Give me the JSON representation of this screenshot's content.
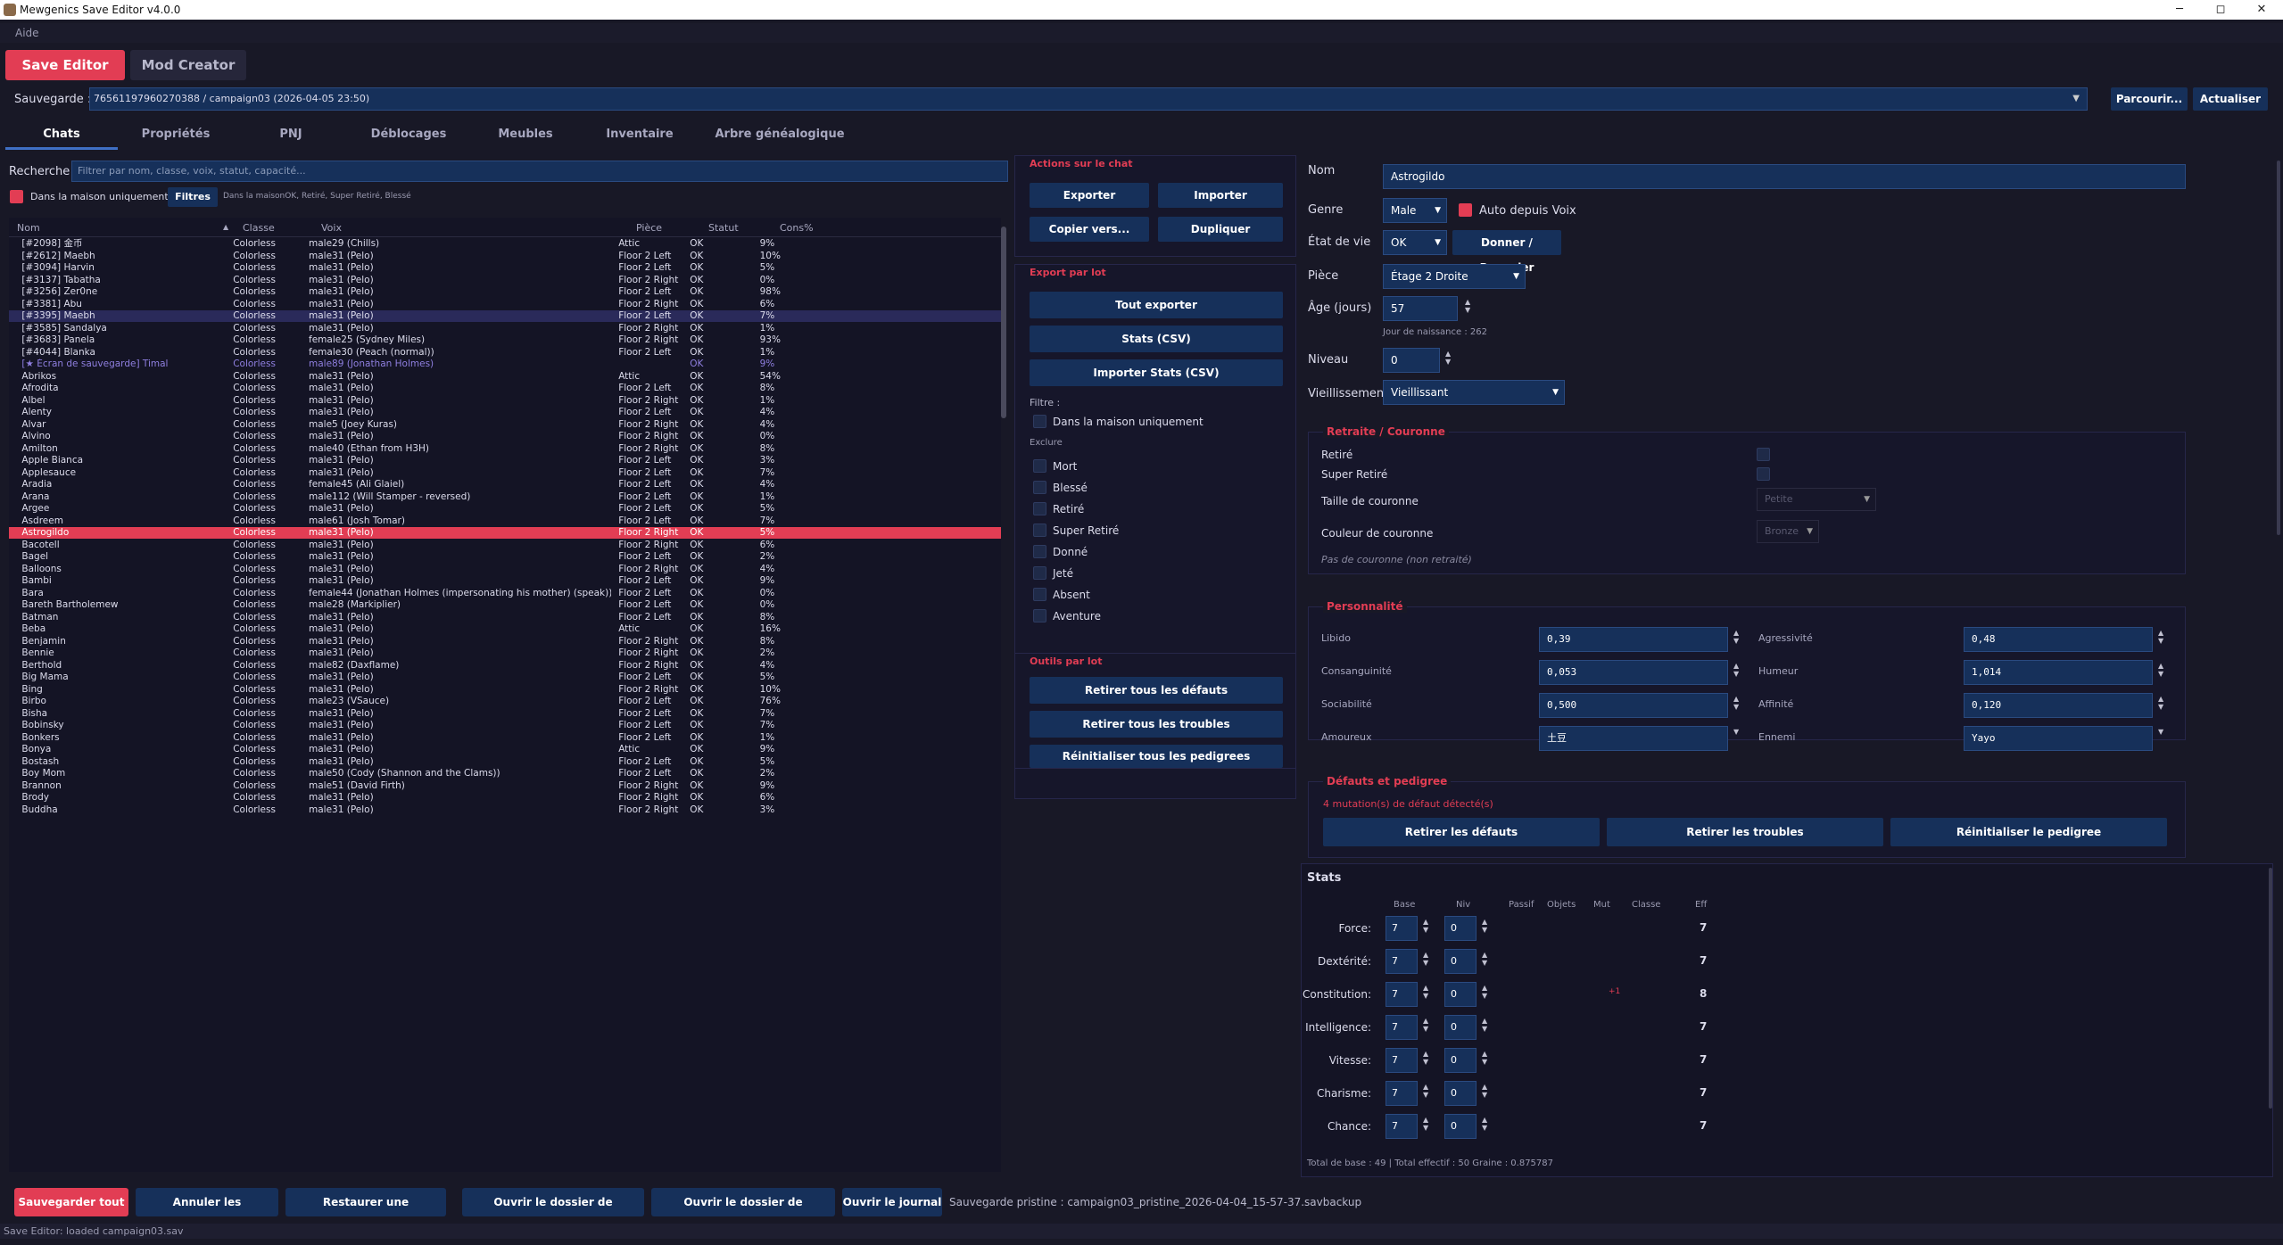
{
  "window": {
    "title": "Mewgenics Save Editor v4.0.0",
    "min": "─",
    "max": "◻",
    "close": "✕"
  },
  "menu": {
    "help": "Aide"
  },
  "main_tabs": [
    "Save Editor",
    "Mod Creator"
  ],
  "save": {
    "label": "Sauvegarde :",
    "value": "76561197960270388 / campaign03  (2026-04-05 23:50)",
    "browse": "Parcourir...",
    "refresh": "Actualiser"
  },
  "tabs": [
    "Chats",
    "Propriétés",
    "PNJ",
    "Déblocages",
    "Meubles",
    "Inventaire",
    "Arbre généalogique"
  ],
  "search": {
    "label": "Recherche :",
    "placeholder": "Filtrer par nom, classe, voix, statut, capacité..."
  },
  "filter": {
    "house_only": "Dans la maison uniquement",
    "filters_btn": "Filtres",
    "summary": "Dans la maisonOK, Retiré, Super Retiré, Blessé"
  },
  "table": {
    "headers": [
      "Nom",
      "Classe",
      "Voix",
      "Pièce",
      "Statut",
      "Cons%"
    ],
    "sort_indicator": "▲",
    "rows": [
      [
        "[#2098] 金币",
        "Colorless",
        "male29 (Chills)",
        "Attic",
        "OK",
        "9%"
      ],
      [
        "[#2612] Maebh",
        "Colorless",
        "male31 (Pelo)",
        "Floor 2 Left",
        "OK",
        "10%"
      ],
      [
        "[#3094] Harvin",
        "Colorless",
        "male31 (Pelo)",
        "Floor 2 Left",
        "OK",
        "5%"
      ],
      [
        "[#3137] Tabatha",
        "Colorless",
        "male31 (Pelo)",
        "Floor 2 Right",
        "OK",
        "0%"
      ],
      [
        "[#3256] Zer0ne",
        "Colorless",
        "male31 (Pelo)",
        "Floor 2 Left",
        "OK",
        "98%"
      ],
      [
        "[#3381] Abu",
        "Colorless",
        "male31 (Pelo)",
        "Floor 2 Right",
        "OK",
        "6%"
      ],
      [
        "[#3395] Maebh",
        "Colorless",
        "male31 (Pelo)",
        "Floor 2 Left",
        "OK",
        "7%"
      ],
      [
        "[#3585] Sandalya",
        "Colorless",
        "male31 (Pelo)",
        "Floor 2 Right",
        "OK",
        "1%"
      ],
      [
        "[#3683] Panela",
        "Colorless",
        "female25 (Sydney Miles)",
        "Floor 2 Right",
        "OK",
        "93%"
      ],
      [
        "[#4044] Blanka",
        "Colorless",
        "female30 (Peach (normal))",
        "Floor 2 Left",
        "OK",
        "1%"
      ],
      [
        "[★ Écran de sauvegarde] Timal",
        "Colorless",
        "male89 (Jonathan Holmes)",
        "",
        "OK",
        "9%"
      ],
      [
        "Abrikos",
        "Colorless",
        "male31 (Pelo)",
        "Attic",
        "OK",
        "54%"
      ],
      [
        "Afrodita",
        "Colorless",
        "male31 (Pelo)",
        "Floor 2 Left",
        "OK",
        "8%"
      ],
      [
        "Albel",
        "Colorless",
        "male31 (Pelo)",
        "Floor 2 Right",
        "OK",
        "1%"
      ],
      [
        "Alenty",
        "Colorless",
        "male31 (Pelo)",
        "Floor 2 Left",
        "OK",
        "4%"
      ],
      [
        "Alvar",
        "Colorless",
        "male5 (Joey Kuras)",
        "Floor 2 Right",
        "OK",
        "4%"
      ],
      [
        "Alvino",
        "Colorless",
        "male31 (Pelo)",
        "Floor 2 Right",
        "OK",
        "0%"
      ],
      [
        "Amilton",
        "Colorless",
        "male40 (Ethan from H3H)",
        "Floor 2 Right",
        "OK",
        "8%"
      ],
      [
        "Apple Bianca",
        "Colorless",
        "male31 (Pelo)",
        "Floor 2 Left",
        "OK",
        "3%"
      ],
      [
        "Applesauce",
        "Colorless",
        "male31 (Pelo)",
        "Floor 2 Left",
        "OK",
        "7%"
      ],
      [
        "Aradia",
        "Colorless",
        "female45 (Ali Glaiel)",
        "Floor 2 Left",
        "OK",
        "4%"
      ],
      [
        "Arana",
        "Colorless",
        "male112 (Will Stamper - reversed)",
        "Floor 2 Left",
        "OK",
        "1%"
      ],
      [
        "Argee",
        "Colorless",
        "male31 (Pelo)",
        "Floor 2 Left",
        "OK",
        "5%"
      ],
      [
        "Asdreem",
        "Colorless",
        "male61 (Josh Tomar)",
        "Floor 2 Left",
        "OK",
        "7%"
      ],
      [
        "Astrogildo",
        "Colorless",
        "male31 (Pelo)",
        "Floor 2 Right",
        "OK",
        "5%"
      ],
      [
        "Bacotell",
        "Colorless",
        "male31 (Pelo)",
        "Floor 2 Right",
        "OK",
        "6%"
      ],
      [
        "Bagel",
        "Colorless",
        "male31 (Pelo)",
        "Floor 2 Left",
        "OK",
        "2%"
      ],
      [
        "Balloons",
        "Colorless",
        "male31 (Pelo)",
        "Floor 2 Right",
        "OK",
        "4%"
      ],
      [
        "Bambi",
        "Colorless",
        "male31 (Pelo)",
        "Floor 2 Left",
        "OK",
        "9%"
      ],
      [
        "Bara",
        "Colorless",
        "female44 (Jonathan Holmes (impersonating his mother) (speak))",
        "Floor 2 Left",
        "OK",
        "0%"
      ],
      [
        "Bareth Bartholemew",
        "Colorless",
        "male28 (Markiplier)",
        "Floor 2 Left",
        "OK",
        "0%"
      ],
      [
        "Batman",
        "Colorless",
        "male31 (Pelo)",
        "Floor 2 Left",
        "OK",
        "8%"
      ],
      [
        "Beba",
        "Colorless",
        "male31 (Pelo)",
        "Attic",
        "OK",
        "16%"
      ],
      [
        "Benjamin",
        "Colorless",
        "male31 (Pelo)",
        "Floor 2 Right",
        "OK",
        "8%"
      ],
      [
        "Bennie",
        "Colorless",
        "male31 (Pelo)",
        "Floor 2 Right",
        "OK",
        "2%"
      ],
      [
        "Berthold",
        "Colorless",
        "male82 (Daxflame)",
        "Floor 2 Right",
        "OK",
        "4%"
      ],
      [
        "Big Mama",
        "Colorless",
        "male31 (Pelo)",
        "Floor 2 Left",
        "OK",
        "5%"
      ],
      [
        "Bing",
        "Colorless",
        "male31 (Pelo)",
        "Floor 2 Right",
        "OK",
        "10%"
      ],
      [
        "Birbo",
        "Colorless",
        "male23 (VSauce)",
        "Floor 2 Left",
        "OK",
        "76%"
      ],
      [
        "Bisha",
        "Colorless",
        "male31 (Pelo)",
        "Floor 2 Left",
        "OK",
        "7%"
      ],
      [
        "Bobinsky",
        "Colorless",
        "male31 (Pelo)",
        "Floor 2 Left",
        "OK",
        "7%"
      ],
      [
        "Bonkers",
        "Colorless",
        "male31 (Pelo)",
        "Floor 2 Left",
        "OK",
        "1%"
      ],
      [
        "Bonya",
        "Colorless",
        "male31 (Pelo)",
        "Attic",
        "OK",
        "9%"
      ],
      [
        "Bostash",
        "Colorless",
        "male31 (Pelo)",
        "Floor 2 Left",
        "OK",
        "5%"
      ],
      [
        "Boy Mom",
        "Colorless",
        "male50 (Cody (Shannon and the Clams))",
        "Floor 2 Left",
        "OK",
        "2%"
      ],
      [
        "Brannon",
        "Colorless",
        "male51 (David Firth)",
        "Floor 2 Right",
        "OK",
        "9%"
      ],
      [
        "Brody",
        "Colorless",
        "male31 (Pelo)",
        "Floor 2 Right",
        "OK",
        "6%"
      ],
      [
        "Buddha",
        "Colorless",
        "male31 (Pelo)",
        "Floor 2 Right",
        "OK",
        "3%"
      ]
    ],
    "selected_index": 24,
    "highlight_index": 6,
    "special_index": 10
  },
  "actions": {
    "title": "Actions sur le chat",
    "export": "Exporter",
    "import": "Importer",
    "copy": "Copier vers...",
    "duplicate": "Dupliquer"
  },
  "batch_export": {
    "title": "Export par lot",
    "all": "Tout exporter",
    "stats": "Stats (CSV)",
    "import_stats": "Importer Stats (CSV)",
    "filter_label": "Filtre :",
    "house_only": "Dans la maison uniquement",
    "exclude_label": "Exclure",
    "excludes": [
      "Mort",
      "Blessé",
      "Retiré",
      "Super Retiré",
      "Donné",
      "Jeté",
      "Absent",
      "Aventure"
    ]
  },
  "batch_tools": {
    "title": "Outils par lot",
    "remove_defects": "Retirer tous les défauts",
    "remove_troubles": "Retirer tous les troubles",
    "reset_pedigrees": "Réinitialiser tous les pedigrees"
  },
  "cat": {
    "name_label": "Nom",
    "name": "Astrogildo",
    "gender_label": "Genre",
    "gender": "Male",
    "auto_voice": "Auto depuis Voix",
    "life_label": "État de vie",
    "life": "OK",
    "give_btn": "Donner / Rappeler",
    "room_label": "Pièce",
    "room": "Étage 2 Droite",
    "age_label": "Âge (jours)",
    "age": "57",
    "birth": "Jour de naissance : 262",
    "level_label": "Niveau",
    "level": "0",
    "aging_label": "Vieillissement",
    "aging": "Vieillissant"
  },
  "retire": {
    "title": "Retraite / Couronne",
    "retired": "Retiré",
    "super_retired": "Super Retiré",
    "crown_size_label": "Taille de couronne",
    "crown_size": "Petite",
    "crown_color_label": "Couleur de couronne",
    "crown_color": "Bronze",
    "note": "Pas de couronne (non retraité)"
  },
  "personality": {
    "title": "Personnalité",
    "left": [
      {
        "label": "Libido",
        "value": "0,39"
      },
      {
        "label": "Consanguinité",
        "value": "0,053"
      },
      {
        "label": "Sociabilité",
        "value": "0,500"
      },
      {
        "label": "Amoureux",
        "value": "土豆"
      }
    ],
    "right": [
      {
        "label": "Agressivité",
        "value": "0,48"
      },
      {
        "label": "Humeur",
        "value": "1,014"
      },
      {
        "label": "Affinité",
        "value": "0,120"
      },
      {
        "label": "Ennemi",
        "value": "Yayo"
      }
    ]
  },
  "defects": {
    "title": "Défauts et pedigree",
    "warning": "4 mutation(s) de défaut détecté(s)",
    "remove_defects": "Retirer les défauts",
    "remove_troubles": "Retirer les troubles",
    "reset_pedigree": "Réinitialiser le pedigree"
  },
  "stats": {
    "title": "Stats",
    "headers": [
      "Base",
      "Niv",
      "Passif",
      "Objets",
      "Mut",
      "Classe",
      "Eff"
    ],
    "rows": [
      {
        "label": "Force:",
        "base": "7",
        "niv": "0",
        "mut": "",
        "eff": "7"
      },
      {
        "label": "Dextérité:",
        "base": "7",
        "niv": "0",
        "mut": "",
        "eff": "7"
      },
      {
        "label": "Constitution:",
        "base": "7",
        "niv": "0",
        "mut": "+1",
        "eff": "8"
      },
      {
        "label": "Intelligence:",
        "base": "7",
        "niv": "0",
        "mut": "",
        "eff": "7"
      },
      {
        "label": "Vitesse:",
        "base": "7",
        "niv": "0",
        "mut": "",
        "eff": "7"
      },
      {
        "label": "Charisme:",
        "base": "7",
        "niv": "0",
        "mut": "",
        "eff": "7"
      },
      {
        "label": "Chance:",
        "base": "7",
        "niv": "0",
        "mut": "",
        "eff": "7"
      }
    ],
    "footer": "Total de base : 49  |  Total effectif : 50  Graine :  0.875787"
  },
  "bottom": {
    "save_all": "Sauvegarder tout",
    "cancel": "Annuler les modifications",
    "restore": "Restaurer une sauvegarde...",
    "open_save_folder": "Ouvrir le dossier de sauvegarde",
    "open_saves_folder": "Ouvrir le dossier de sauvegardes",
    "open_log": "Ouvrir le journal",
    "pristine": "Sauvegarde pristine : campaign03_pristine_2026-04-04_15-57-37.savbackup"
  },
  "status": "Save Editor: loaded campaign03.sav",
  "colors": {
    "accent": "#e23d54",
    "button": "#16305a",
    "background": "#181826",
    "selected_row": "#e23d54",
    "highlight_row": "#2a2a5a"
  }
}
